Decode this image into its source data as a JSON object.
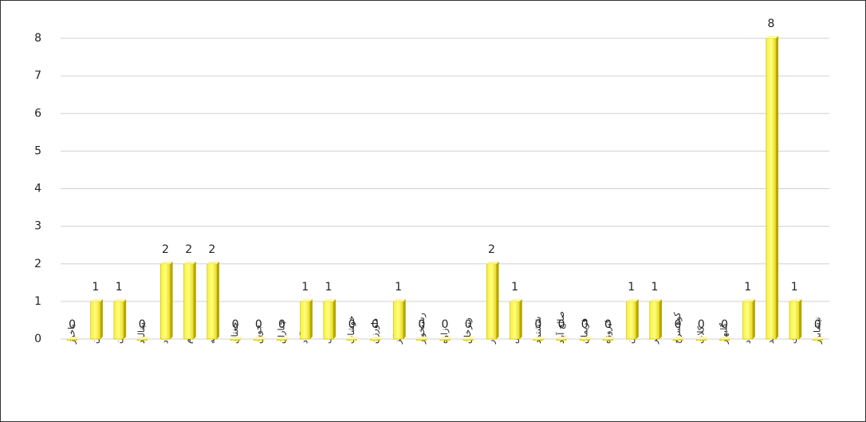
{
  "chart_data": {
    "type": "bar",
    "categories": [
      "باخرز",
      "بجستان",
      "بردسکن",
      "بینالود",
      "تایباد",
      "تربت جام",
      "تربت حیدریه",
      "جغتای",
      "جوین",
      "چناران",
      "خلیل آباد",
      "خواف",
      "خوشاب",
      "داورزن",
      "درگز",
      "رشتخوار",
      "زاوه",
      "زبرخان",
      "سبزوار",
      "سرخس",
      "ششتمد",
      "صالح آباد",
      "فریمان",
      "فیروزه",
      "قوچان",
      "کاشمر",
      "کوهسرخ",
      "کلات",
      "گلبهار",
      "گناباد",
      "مشهد",
      "مه ولات",
      "نیشابور"
    ],
    "values": [
      0,
      1,
      1,
      0,
      2,
      2,
      2,
      0,
      0,
      0,
      1,
      1,
      0,
      0,
      1,
      0,
      0,
      0,
      2,
      1,
      0,
      0,
      0,
      0,
      1,
      1,
      0,
      0,
      0,
      1,
      8,
      1,
      0
    ],
    "color": "#ffff33",
    "ylim": [
      0,
      8
    ],
    "yticks": [
      0,
      1,
      2,
      3,
      4,
      5,
      6,
      7,
      8
    ],
    "grid": true
  }
}
